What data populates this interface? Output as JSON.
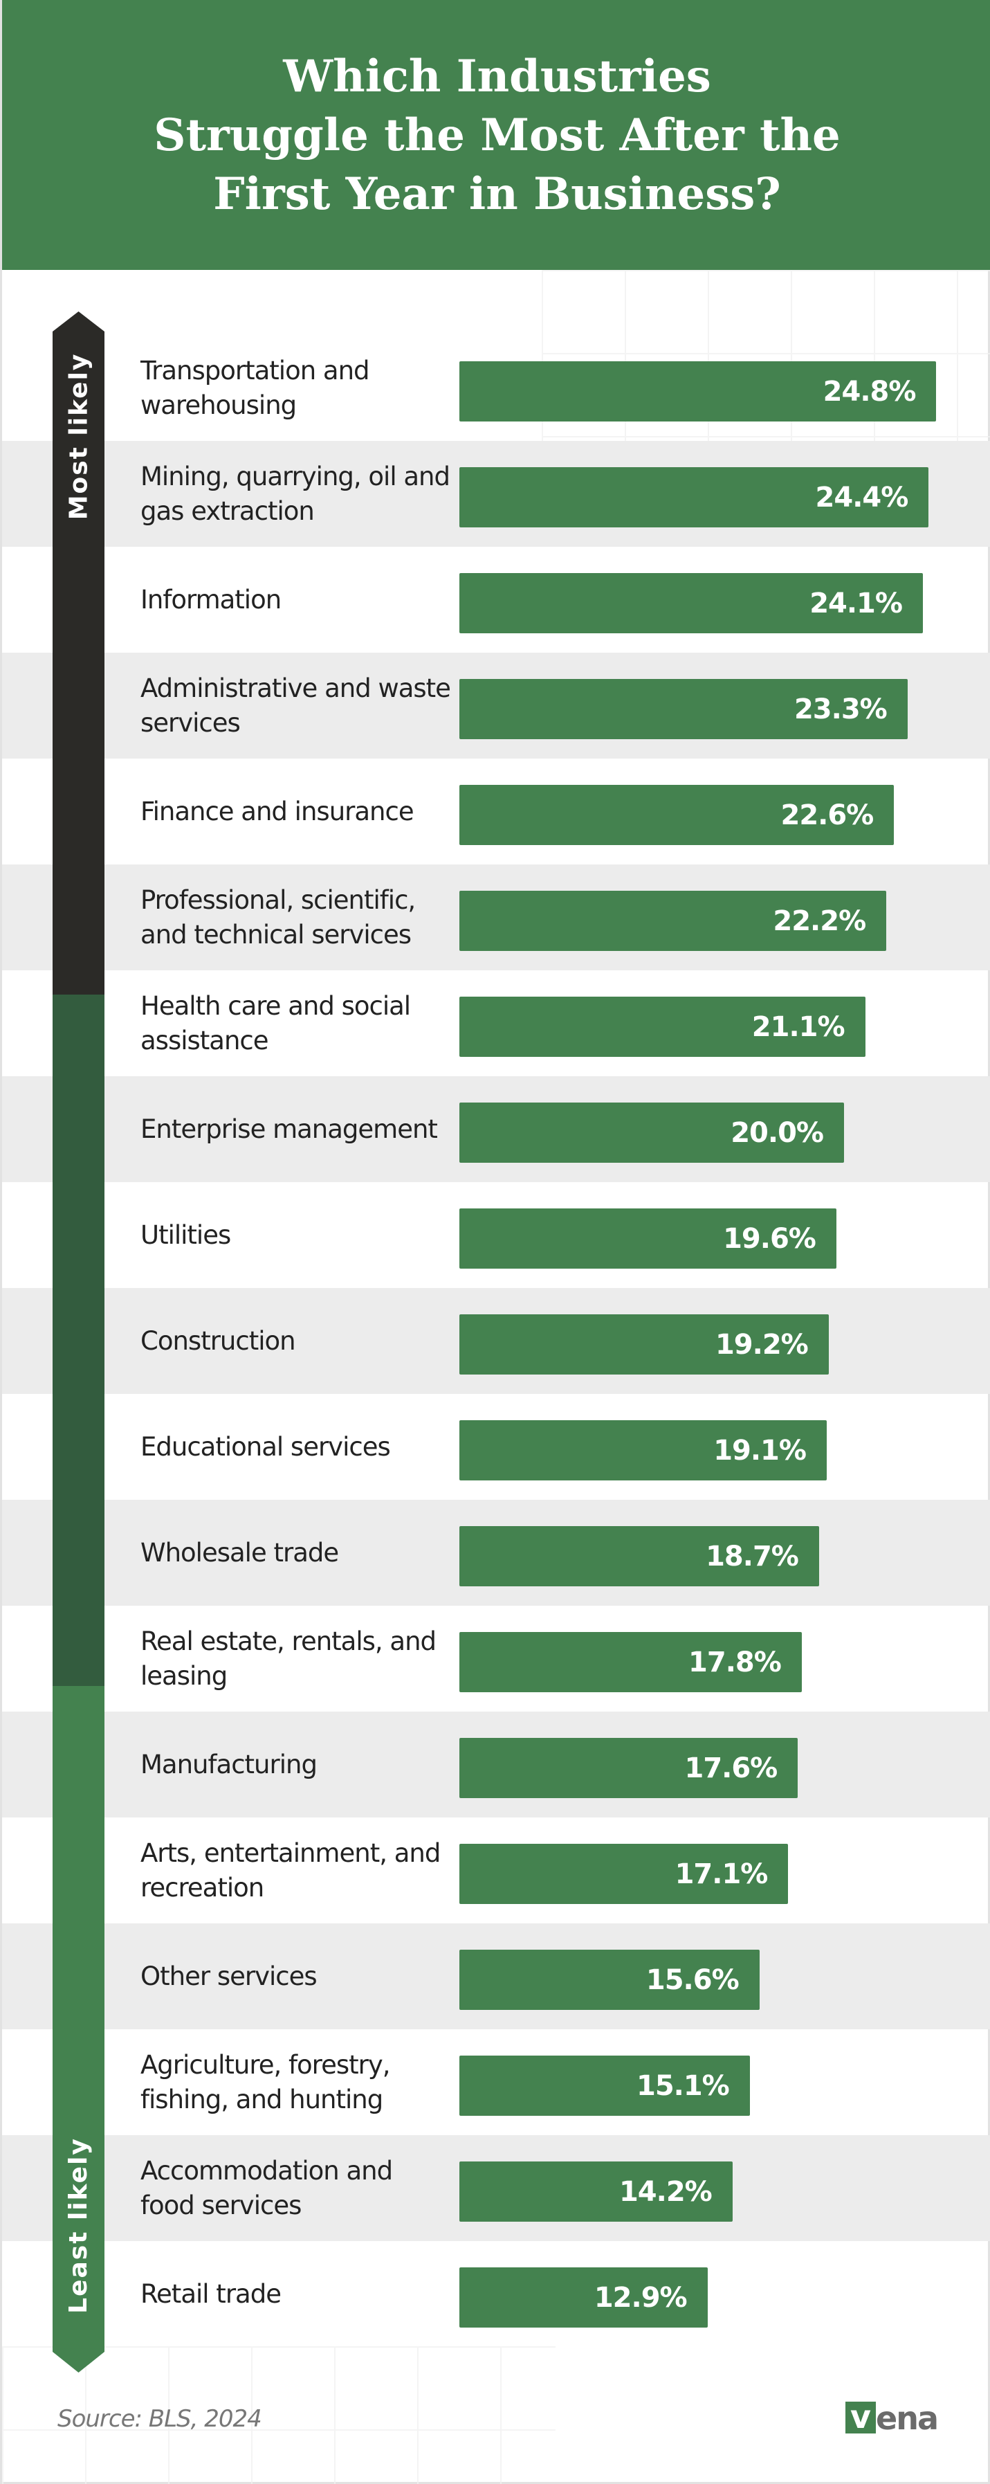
{
  "title": "Which Industries\nStruggle the Most After the\nFirst Year in Business?",
  "scale": {
    "top_label": "Most likely",
    "bottom_label": "Least likely",
    "colors": [
      "#2b2a27",
      "#335c3e",
      "#44824f"
    ]
  },
  "chart_data": {
    "type": "bar",
    "orientation": "horizontal",
    "title": "Which Industries Struggle the Most After the First Year in Business?",
    "categories": [
      "Transportation and warehousing",
      "Mining, quarrying, oil and gas extraction",
      "Information",
      "Administrative and waste services",
      "Finance and insurance",
      "Professional, scientific, and technical services",
      "Health care and social assistance",
      "Enterprise management",
      "Utilities",
      "Construction",
      "Educational services",
      "Wholesale trade",
      "Real estate, rentals, and leasing",
      "Manufacturing",
      "Arts, entertainment, and recreation",
      "Other services",
      "Agriculture, forestry, fishing, and hunting",
      "Accommodation and food services",
      "Retail trade"
    ],
    "values": [
      24.8,
      24.4,
      24.1,
      23.3,
      22.6,
      22.2,
      21.1,
      20.0,
      19.6,
      19.2,
      19.1,
      18.7,
      17.8,
      17.6,
      17.1,
      15.6,
      15.1,
      14.2,
      12.9
    ],
    "value_labels": [
      "24.8%",
      "24.4%",
      "24.1%",
      "23.3%",
      "22.6%",
      "22.2%",
      "21.1%",
      "20.0%",
      "19.6%",
      "19.2%",
      "19.1%",
      "18.7%",
      "17.8%",
      "17.6%",
      "17.1%",
      "15.6%",
      "15.1%",
      "14.2%",
      "12.9%"
    ],
    "unit": "%",
    "bar_color": "#44824f",
    "grid": false
  },
  "footer": {
    "source": "Source: BLS, 2024",
    "logo_text": "vena",
    "logo_v": "v",
    "logo_rest": "ena"
  }
}
